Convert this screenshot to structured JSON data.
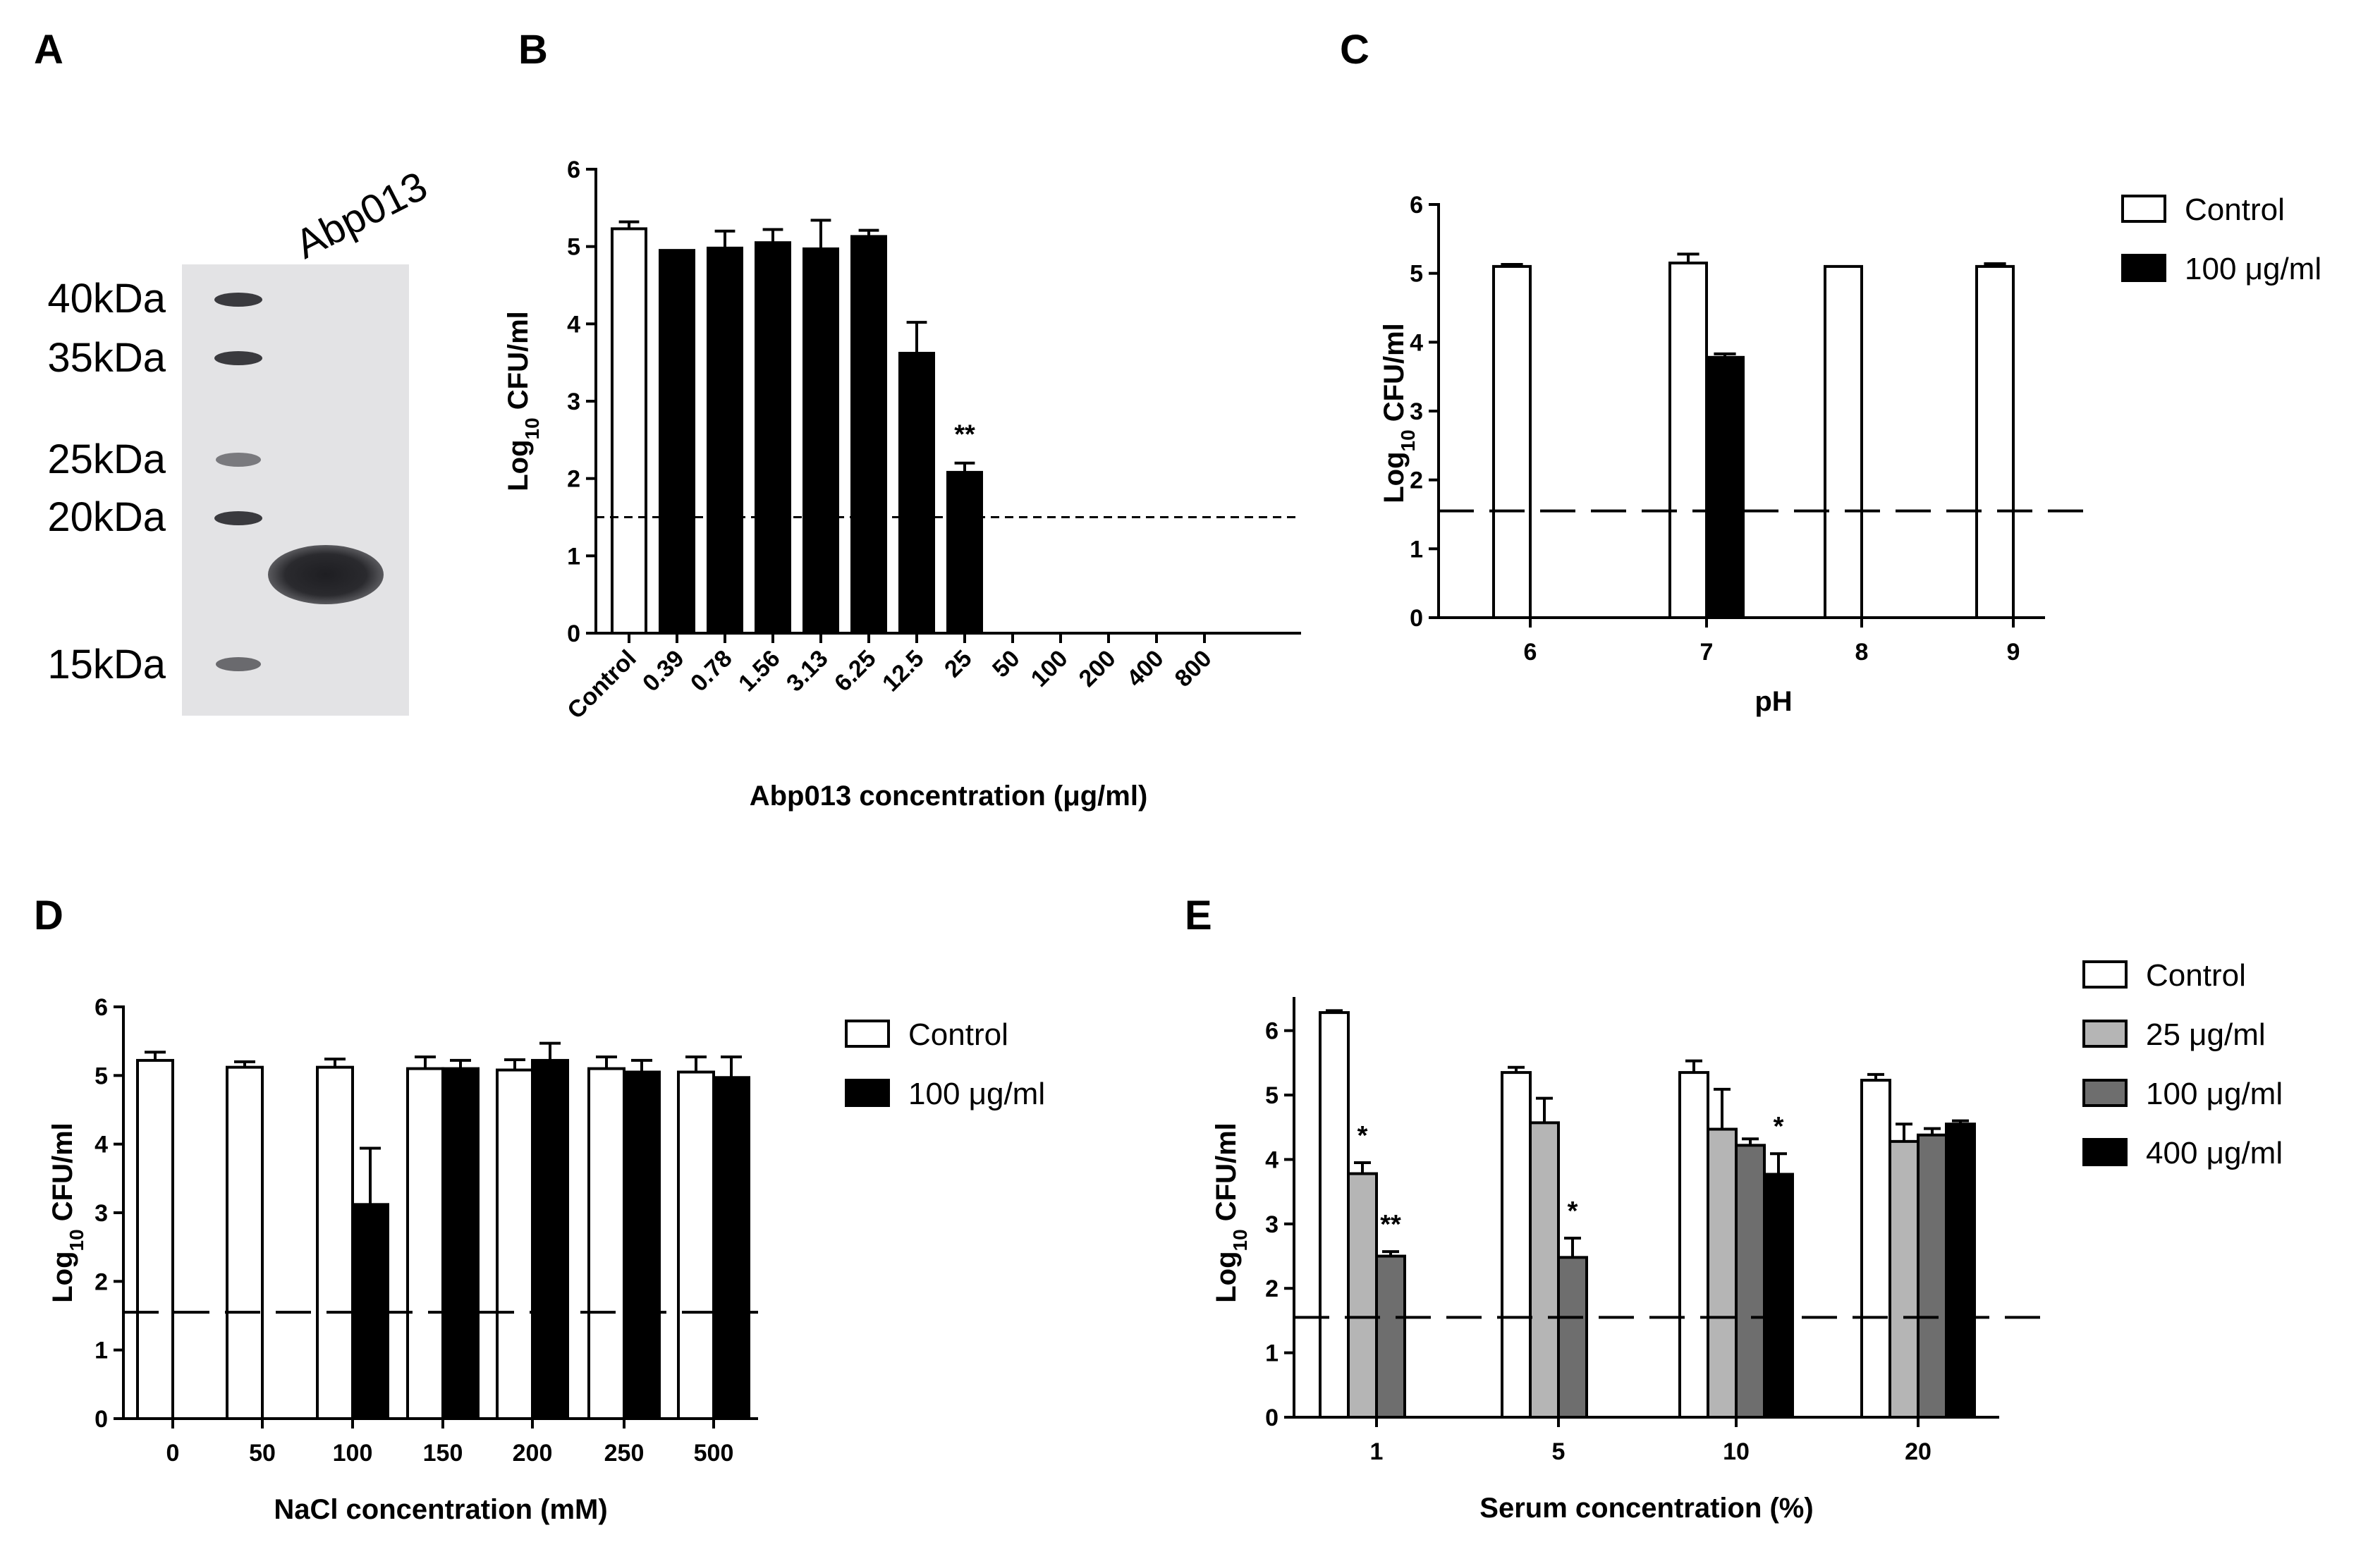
{
  "figure": {
    "panels": {
      "a": "A",
      "b": "B",
      "c": "C",
      "d": "D",
      "e": "E"
    }
  },
  "gel": {
    "protein_label": "Abp013",
    "markers": [
      "40kDa",
      "35kDa",
      "25kDa",
      "20kDa",
      "15kDa"
    ]
  },
  "chart_data": [
    {
      "panel": "B",
      "type": "bar",
      "ylabel": "Log10 CFU/ml",
      "xlabel": "Abp013 concentration (μg/ml)",
      "ylim": [
        0,
        6
      ],
      "yticks": [
        "0",
        "1",
        "2",
        "3",
        "4",
        "5",
        "6"
      ],
      "categories": [
        "Control",
        "0.39",
        "0.78",
        "1.56",
        "3.13",
        "6.25",
        "12.5",
        "25",
        "50",
        "100",
        "200",
        "400",
        "800"
      ],
      "values": [
        5.23,
        4.95,
        4.98,
        5.05,
        4.97,
        5.13,
        3.62,
        2.08,
        0,
        0,
        0,
        0,
        0
      ],
      "errors": [
        0.09,
        0,
        0.22,
        0.17,
        0.37,
        0.08,
        0.4,
        0.12,
        0,
        0,
        0,
        0,
        0
      ],
      "fills": [
        "white",
        "black",
        "black",
        "black",
        "black",
        "black",
        "black",
        "black",
        "black",
        "black",
        "black",
        "black",
        "black"
      ],
      "annotations": [
        {
          "index": 7,
          "text": "**"
        }
      ],
      "detection_limit": 1.5
    },
    {
      "panel": "C",
      "type": "bar",
      "ylabel": "Log10 CFU/ml",
      "xlabel": "pH",
      "ylim": [
        0,
        6
      ],
      "yticks": [
        "0",
        "1",
        "2",
        "3",
        "4",
        "5",
        "6"
      ],
      "categories": [
        "6",
        "7",
        "8",
        "9"
      ],
      "series": [
        {
          "name": "Control",
          "color": "#ffffff",
          "values": [
            5.1,
            5.15,
            5.1,
            5.1
          ],
          "errors": [
            0.03,
            0.13,
            0,
            0.04
          ]
        },
        {
          "name": "100 μg/ml",
          "color": "#000000",
          "values": [
            0,
            3.78,
            0,
            0
          ],
          "errors": [
            0,
            0.05,
            0,
            0
          ]
        }
      ],
      "legend": [
        "Control",
        "100 μg/ml"
      ],
      "detection_limit": 1.55
    },
    {
      "panel": "D",
      "type": "bar",
      "ylabel": "Log10 CFU/ml",
      "xlabel": "NaCl concentration (mM)",
      "ylim": [
        0,
        6
      ],
      "yticks": [
        "0",
        "1",
        "2",
        "3",
        "4",
        "5",
        "6"
      ],
      "categories": [
        "0",
        "50",
        "100",
        "150",
        "200",
        "250",
        "500"
      ],
      "series": [
        {
          "name": "Control",
          "color": "#ffffff",
          "values": [
            5.22,
            5.12,
            5.12,
            5.1,
            5.08,
            5.1,
            5.05
          ],
          "errors": [
            0.12,
            0.08,
            0.12,
            0.17,
            0.15,
            0.17,
            0.22
          ]
        },
        {
          "name": "100 μg/ml",
          "color": "#000000",
          "values": [
            0,
            0,
            3.12,
            5.1,
            5.22,
            5.05,
            4.97
          ],
          "errors": [
            0,
            0,
            0.82,
            0.12,
            0.25,
            0.17,
            0.3
          ]
        }
      ],
      "legend": [
        "Control",
        "100 μg/ml"
      ],
      "detection_limit": 1.55
    },
    {
      "panel": "E",
      "type": "bar",
      "ylabel": "Log10 CFU/ml",
      "xlabel": "Serum concentration (%)",
      "ylim": [
        0,
        6.5
      ],
      "yticks": [
        "0",
        "1",
        "2",
        "3",
        "4",
        "5",
        "6"
      ],
      "categories": [
        "1",
        "5",
        "10",
        "20"
      ],
      "series": [
        {
          "name": "Control",
          "color": "#ffffff",
          "values": [
            6.28,
            5.35,
            5.35,
            5.23
          ],
          "errors": [
            0.03,
            0.08,
            0.18,
            0.09
          ]
        },
        {
          "name": "25 μg/ml",
          "color": "#b5b5b5",
          "values": [
            3.78,
            4.57,
            4.47,
            4.28
          ],
          "errors": [
            0.17,
            0.38,
            0.62,
            0.27
          ]
        },
        {
          "name": "100 μg/ml",
          "color": "#6e6e6e",
          "values": [
            2.5,
            2.48,
            4.22,
            4.38
          ],
          "errors": [
            0.07,
            0.3,
            0.1,
            0.1
          ]
        },
        {
          "name": "400 μg/ml",
          "color": "#000000",
          "values": [
            0,
            0,
            3.77,
            4.55
          ],
          "errors": [
            0,
            0,
            0.32,
            0.05
          ]
        }
      ],
      "annotations": [
        {
          "category": 0,
          "series": 1,
          "text": "*"
        },
        {
          "category": 0,
          "series": 2,
          "text": "**"
        },
        {
          "category": 1,
          "series": 2,
          "text": "*"
        },
        {
          "category": 2,
          "series": 3,
          "text": "*"
        }
      ],
      "legend": [
        "Control",
        "25 μg/ml",
        "100 μg/ml",
        "400 μg/ml"
      ],
      "detection_limit": 1.55
    }
  ]
}
